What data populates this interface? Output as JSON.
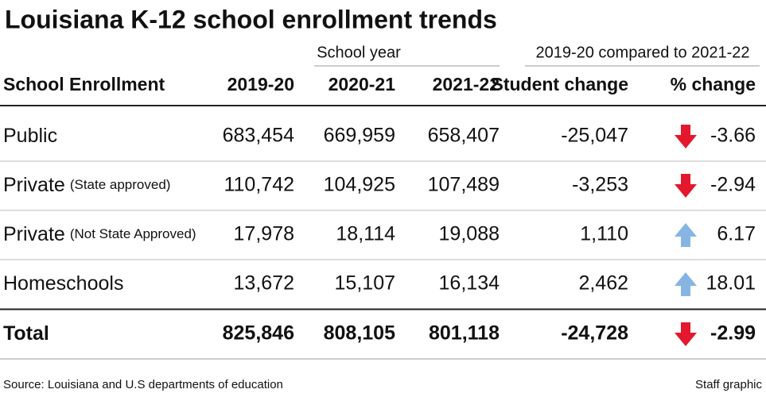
{
  "title": "Louisiana K-12 school enrollment trends",
  "table": {
    "group_headers": [
      "School year",
      "2019-20 compared to 2021-22"
    ],
    "columns": [
      "School Enrollment",
      "2019-20",
      "2020-21",
      "2021-22",
      "Student change",
      "% change"
    ],
    "rows": [
      {
        "label": "Public",
        "cells": [
          "683,454",
          "669,959",
          "658,407",
          "-25,047",
          "-3.66"
        ]
      },
      {
        "label": "Private",
        "note": "(State approved)",
        "cells": [
          "110,742",
          "104,925",
          "107,489",
          "-3,253",
          "-2.94"
        ]
      },
      {
        "label": "Private",
        "note": "(Not State Approved)",
        "cells": [
          "17,978",
          "18,114",
          "19,088",
          "1,110",
          "6.17"
        ]
      },
      {
        "label": "Homeschools",
        "cells": [
          "13,672",
          "15,107",
          "16,134",
          "2,462",
          "18.01"
        ]
      },
      {
        "label": "Total",
        "cells": [
          "825,846",
          "808,105",
          "801,118",
          "-24,728",
          "-2.99"
        ],
        "bold": true
      }
    ]
  },
  "footer": {
    "source": "Source: Louisiana and U.S departments of education",
    "credit": "Staff graphic"
  }
}
